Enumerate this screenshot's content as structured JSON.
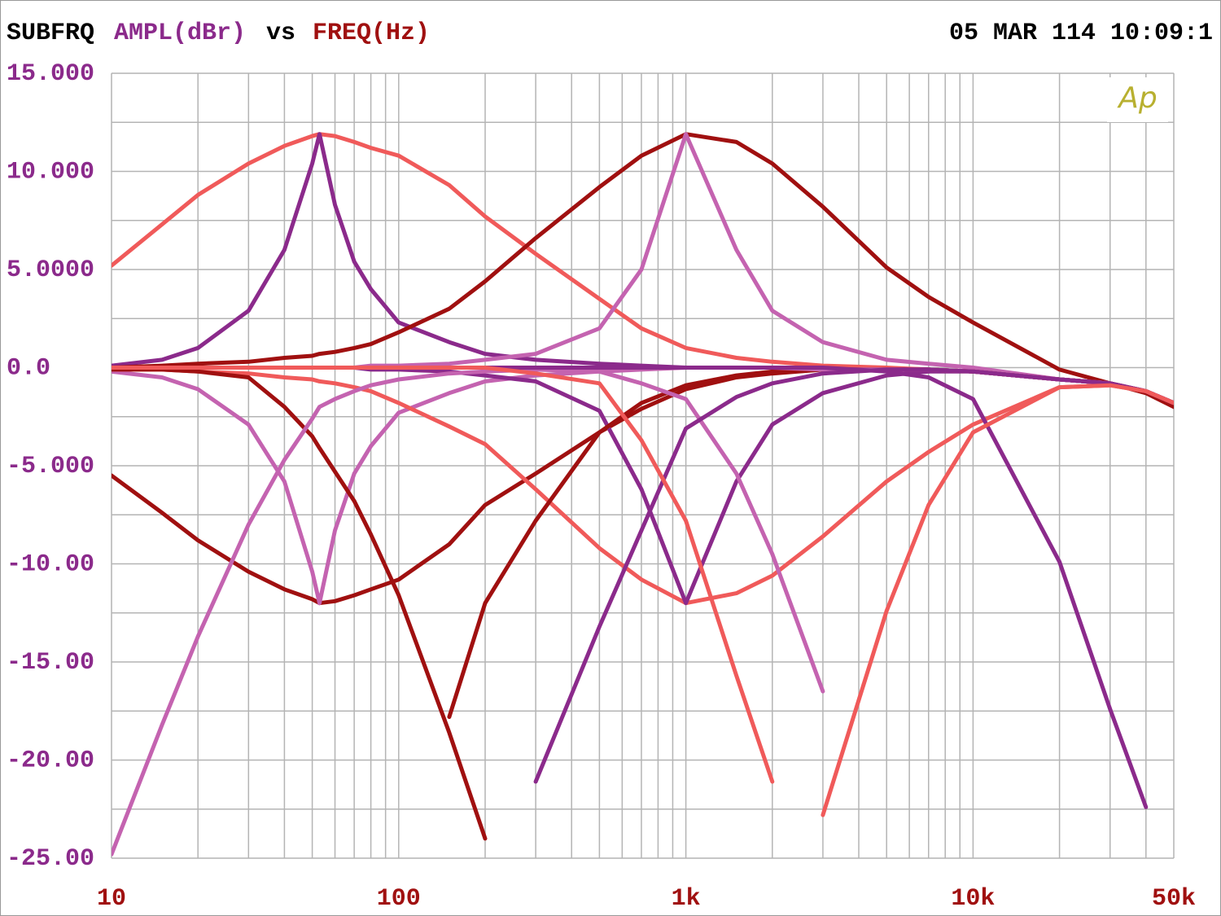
{
  "chart_data": {
    "type": "line",
    "title": "SUBFRQ",
    "y_label": "AMPL(dBr)",
    "title_vs": "vs",
    "x_label": "FREQ(Hz)",
    "timestamp": "05 MAR 114 10:09:1",
    "logo": "Ap",
    "x_log": true,
    "grid": true,
    "xlim": [
      10,
      50000
    ],
    "ylim": [
      -25,
      15
    ],
    "xticks": [
      10,
      100,
      {
        "value": 1000,
        "label": "1k"
      },
      {
        "value": 10000,
        "label": "10k"
      },
      {
        "value": 50000,
        "label": "50k"
      }
    ],
    "yticks": [
      {
        "value": 15,
        "label": "15.000"
      },
      {
        "value": 10,
        "label": "10.000"
      },
      {
        "value": 5,
        "label": "5.0000"
      },
      {
        "value": 0,
        "label": "0.0"
      },
      {
        "value": -5,
        "label": "-5.000"
      },
      {
        "value": -10,
        "label": "-10.00"
      },
      {
        "value": -15,
        "label": "-15.00"
      },
      {
        "value": -20,
        "label": "-20.00"
      },
      {
        "value": -25,
        "label": "-25.00"
      }
    ],
    "x": [
      10,
      15,
      20,
      30,
      40,
      50,
      53,
      60,
      70,
      80,
      100,
      150,
      200,
      300,
      500,
      700,
      1000,
      1500,
      2000,
      3000,
      5000,
      7000,
      10000,
      20000,
      30000,
      40000,
      50000
    ],
    "series": [
      {
        "color": "#f05a5a",
        "values": [
          5.2,
          7.3,
          8.8,
          10.4,
          11.3,
          11.8,
          11.9,
          11.8,
          11.5,
          11.2,
          10.8,
          9.3,
          7.7,
          5.8,
          3.5,
          2.0,
          1.0,
          0.5,
          0.3,
          0.1,
          0,
          -0.1,
          -0.2,
          -0.6,
          -0.8,
          -1.2,
          -1.8
        ]
      },
      {
        "color": "#8b2a8b",
        "values": [
          0.1,
          0.4,
          1.0,
          2.9,
          6.0,
          10.4,
          11.9,
          8.3,
          5.4,
          4.0,
          2.3,
          1.3,
          0.7,
          0.4,
          0.2,
          0.1,
          0,
          0,
          0,
          -0.1,
          -0.1,
          -0.1,
          -0.2,
          -0.6,
          -0.8,
          -1.2,
          -1.8
        ]
      },
      {
        "color": "#a01010",
        "values": [
          0,
          0.1,
          0.2,
          0.3,
          0.5,
          0.6,
          0.7,
          0.8,
          1.0,
          1.2,
          1.8,
          3.0,
          4.4,
          6.6,
          9.2,
          10.8,
          11.9,
          11.5,
          10.4,
          8.2,
          5.1,
          3.6,
          2.3,
          -0.1,
          -0.8,
          -1.3,
          -2.0
        ]
      },
      {
        "color": "#c463b0",
        "values": [
          0,
          0,
          0,
          0,
          0,
          0,
          0,
          0,
          0,
          0.1,
          0.1,
          0.2,
          0.4,
          0.7,
          2.0,
          5.0,
          11.9,
          6.0,
          2.9,
          1.3,
          0.4,
          0.2,
          0,
          -0.6,
          -0.8,
          -1.2,
          -1.8
        ]
      },
      {
        "color": "#a01010",
        "values": [
          -5.5,
          -7.4,
          -8.8,
          -10.4,
          -11.3,
          -11.8,
          -12.0,
          -11.9,
          -11.6,
          -11.3,
          -10.8,
          -9.0,
          -7.0,
          -5.4,
          -3.3,
          -2.1,
          -1.1,
          -0.5,
          -0.3,
          -0.1,
          -0.1,
          -0.1,
          -0.2,
          -0.6,
          -0.8,
          -1.2,
          -1.8
        ]
      },
      {
        "color": "#c463b0",
        "values": [
          -0.2,
          -0.5,
          -1.1,
          -2.9,
          -5.8,
          -10.4,
          -12.0,
          -8.3,
          -5.4,
          -4.0,
          -2.3,
          -1.3,
          -0.7,
          -0.4,
          -0.2,
          -0.1,
          0,
          0,
          0,
          -0.1,
          -0.1,
          -0.1,
          -0.2,
          -0.6,
          -0.8,
          -1.2,
          -1.8
        ]
      },
      {
        "color": "#f05a5a",
        "values": [
          -0.1,
          -0.1,
          -0.2,
          -0.3,
          -0.5,
          -0.6,
          -0.7,
          -0.8,
          -1.0,
          -1.2,
          -1.8,
          -3.0,
          -3.9,
          -6.2,
          -9.2,
          -10.8,
          -12.0,
          -11.5,
          -10.6,
          -8.6,
          -5.8,
          -4.3,
          -2.9,
          -1.0,
          -0.9,
          -1.2,
          -1.8
        ]
      },
      {
        "color": "#8b2a8b",
        "values": [
          0,
          0,
          0,
          0,
          0,
          0,
          0,
          0,
          0,
          -0.1,
          -0.1,
          -0.2,
          -0.4,
          -0.7,
          -2.2,
          -6.2,
          -12.0,
          -5.8,
          -2.9,
          -1.3,
          -0.4,
          -0.2,
          -0.2,
          -0.6,
          -0.8,
          -1.2,
          -1.8
        ]
      },
      {
        "color": "#a01010",
        "values": [
          -0.1,
          -0.1,
          -0.2,
          -0.5,
          -2.0,
          -3.5,
          -4.1,
          -5.3,
          -6.8,
          -8.5,
          -11.6,
          -18.6,
          -24.0,
          null,
          null,
          null,
          null,
          null,
          null,
          null,
          null,
          null,
          null,
          null,
          null,
          null,
          null
        ]
      },
      {
        "color": "#a01010",
        "values": [
          null,
          null,
          null,
          null,
          null,
          null,
          null,
          null,
          null,
          null,
          null,
          -17.8,
          -12.0,
          -7.8,
          -3.3,
          -1.8,
          -0.9,
          -0.4,
          -0.2,
          -0.1,
          -0.1,
          -0.1,
          -0.2,
          -0.6,
          -0.8,
          -1.2,
          -1.8
        ]
      },
      {
        "color": "#c463b0",
        "values": [
          -24.8,
          -18.2,
          -13.7,
          -8.0,
          -4.7,
          -2.6,
          -2.0,
          -1.6,
          -1.2,
          -0.9,
          -0.6,
          -0.3,
          -0.2,
          -0.1,
          0,
          0,
          0,
          0,
          0,
          -0.1,
          -0.1,
          -0.1,
          -0.2,
          -0.6,
          -0.8,
          -1.2,
          -1.8
        ]
      },
      {
        "color": "#c463b0",
        "values": [
          0,
          0,
          0,
          0,
          0,
          0,
          0,
          0,
          0,
          0,
          0,
          0,
          0,
          -0.1,
          -0.2,
          -0.8,
          -1.6,
          -5.4,
          -9.5,
          -16.5,
          null,
          null,
          null,
          null,
          null,
          null,
          null
        ]
      },
      {
        "color": "#8b2a8b",
        "values": [
          null,
          null,
          null,
          null,
          null,
          null,
          null,
          null,
          null,
          null,
          null,
          null,
          null,
          -21.1,
          -13.2,
          -8.3,
          -3.1,
          -1.5,
          -0.8,
          -0.3,
          -0.1,
          -0.1,
          -0.2,
          -0.6,
          -0.8,
          -1.2,
          -1.8
        ]
      },
      {
        "color": "#8b2a8b",
        "values": [
          0,
          0,
          0,
          0,
          0,
          0,
          0,
          0,
          0,
          0,
          0,
          0,
          0,
          0,
          0,
          0,
          0,
          0,
          0,
          0,
          -0.2,
          -0.5,
          -1.6,
          -9.9,
          -17.4,
          -22.4,
          null
        ]
      },
      {
        "color": "#f05a5a",
        "values": [
          0,
          0,
          0,
          0,
          0,
          0,
          0,
          0,
          0,
          0,
          0,
          0,
          0,
          -0.3,
          -0.8,
          -3.7,
          -7.8,
          -15.7,
          -21.1,
          null,
          null,
          null,
          null,
          null,
          null,
          null,
          null
        ]
      },
      {
        "color": "#f05a5a",
        "values": [
          null,
          null,
          null,
          null,
          null,
          null,
          null,
          null,
          null,
          null,
          null,
          null,
          null,
          null,
          null,
          null,
          null,
          null,
          null,
          -22.8,
          -12.4,
          -7.0,
          -3.3,
          -1.0,
          -0.9,
          -1.2,
          -1.8
        ]
      }
    ]
  }
}
